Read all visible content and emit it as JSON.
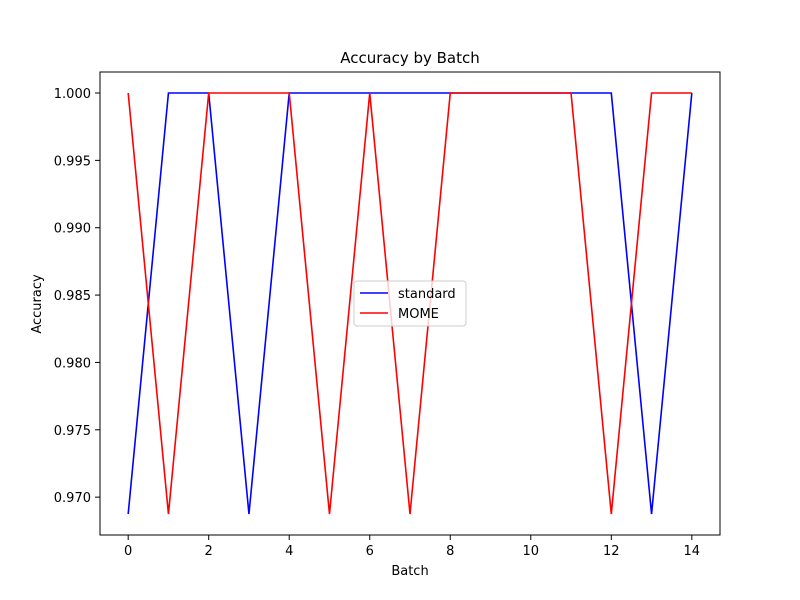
{
  "chart_data": {
    "type": "line",
    "title": "Accuracy by Batch",
    "xlabel": "Batch",
    "ylabel": "Accuracy",
    "x": [
      0,
      1,
      2,
      3,
      4,
      5,
      6,
      7,
      8,
      9,
      10,
      11,
      12,
      13,
      14
    ],
    "xlim": [
      -0.7,
      14.7
    ],
    "ylim": [
      0.96719,
      1.00156
    ],
    "x_ticks": [
      0,
      2,
      4,
      6,
      8,
      10,
      12,
      14
    ],
    "y_ticks": [
      0.97,
      0.975,
      0.98,
      0.985,
      0.99,
      0.995,
      1.0
    ],
    "x_tick_labels": [
      "0",
      "2",
      "4",
      "6",
      "8",
      "10",
      "12",
      "14"
    ],
    "y_tick_labels": [
      "0.970",
      "0.975",
      "0.980",
      "0.985",
      "0.990",
      "0.995",
      "1.000"
    ],
    "grid": false,
    "legend_position": "center",
    "series": [
      {
        "name": "standard",
        "color": "#0000ff",
        "values": [
          0.96875,
          1.0,
          1.0,
          0.96875,
          1.0,
          1.0,
          1.0,
          1.0,
          1.0,
          1.0,
          1.0,
          1.0,
          1.0,
          0.96875,
          1.0
        ]
      },
      {
        "name": "MOME",
        "color": "#ff0000",
        "values": [
          1.0,
          0.96875,
          1.0,
          1.0,
          1.0,
          0.96875,
          1.0,
          0.96875,
          1.0,
          1.0,
          1.0,
          1.0,
          0.96875,
          1.0,
          1.0
        ]
      }
    ]
  }
}
